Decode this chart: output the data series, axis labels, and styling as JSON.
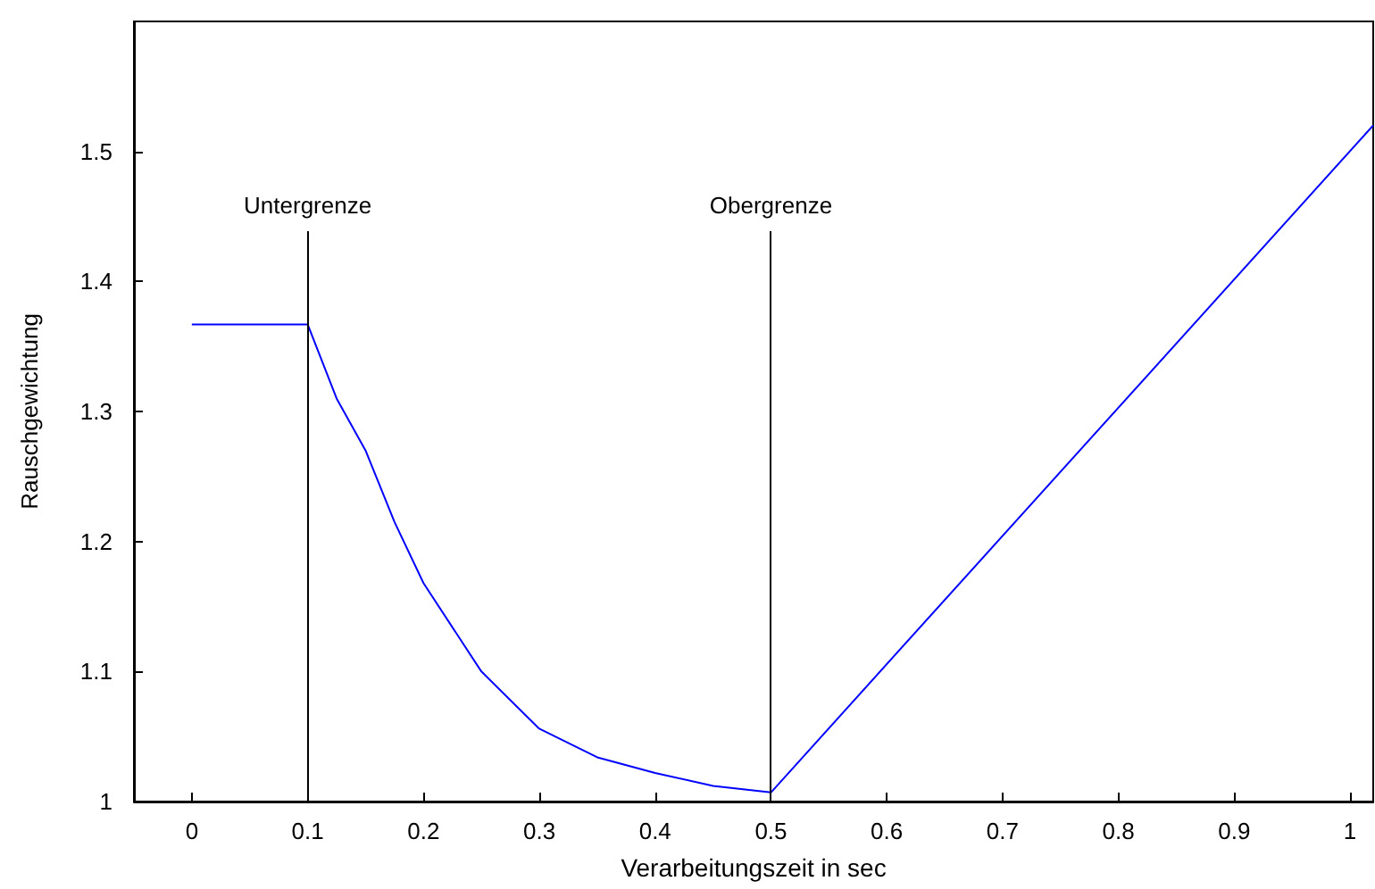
{
  "chart_data": {
    "type": "line",
    "xlabel": "Verarbeitungszeit in sec",
    "ylabel": "Rauschgewichtung",
    "series": [
      {
        "color": "#0000ff",
        "x": [
          0,
          0.1,
          0.125,
          0.15,
          0.175,
          0.2,
          0.25,
          0.3,
          0.35,
          0.4,
          0.45,
          0.5,
          1.02
        ],
        "values": [
          1.367,
          1.367,
          1.31,
          1.27,
          1.215,
          1.168,
          1.1,
          1.056,
          1.034,
          1.022,
          1.012,
          1.007,
          1.52
        ]
      }
    ],
    "xlim": [
      -0.05,
      1.02
    ],
    "ylim": [
      1,
      1.6
    ],
    "xticks": [
      0,
      0.1,
      0.2,
      0.3,
      0.4,
      0.5,
      0.6,
      0.7,
      0.8,
      0.9,
      1
    ],
    "yticks": [
      1,
      1.1,
      1.2,
      1.3,
      1.4,
      1.5
    ],
    "ref_lines": [
      {
        "axis": "x",
        "value": 0.1,
        "label": "Untergrenze",
        "color": "#000000"
      },
      {
        "axis": "x",
        "value": 0.5,
        "label": "Obergrenze",
        "color": "#000000"
      }
    ],
    "grid": false,
    "marker": "none",
    "line_style": "solid"
  }
}
